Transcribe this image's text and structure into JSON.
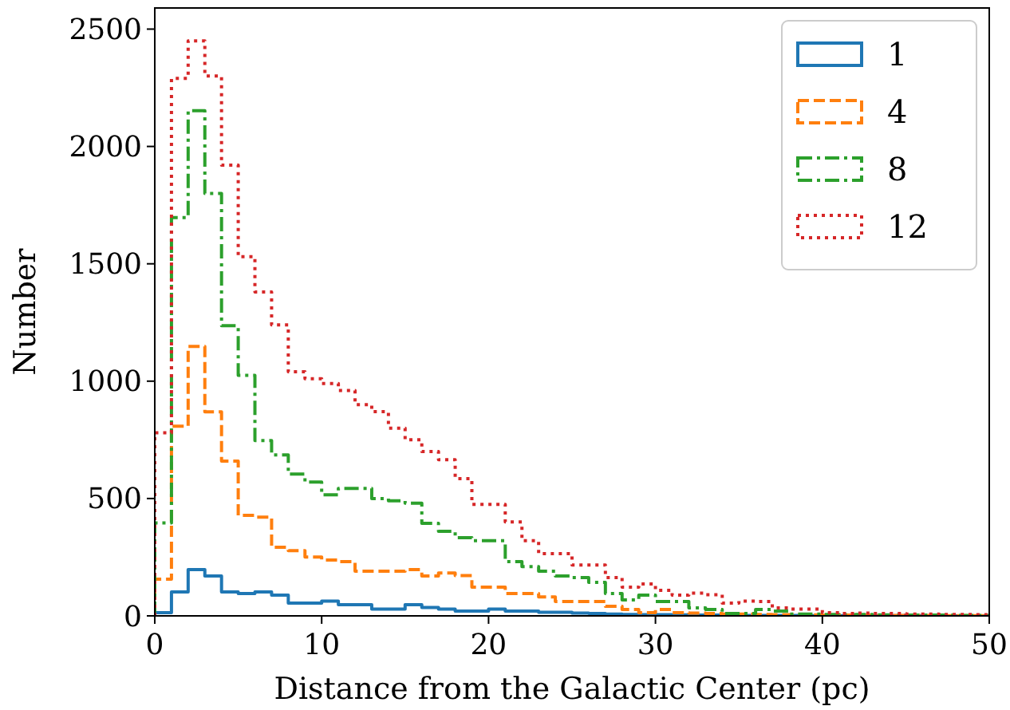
{
  "chart_data": {
    "type": "histogram",
    "xlabel": "Distance from the Galactic Center (pc)",
    "ylabel": "Number",
    "bins": [
      0,
      1,
      2,
      3,
      4,
      5,
      6,
      7,
      8,
      9,
      10,
      11,
      12,
      13,
      14,
      15,
      16,
      17,
      18,
      19,
      20,
      21,
      22,
      23,
      24,
      25,
      26,
      27,
      28,
      29,
      30,
      31,
      32,
      33,
      34,
      35,
      36,
      37,
      38,
      39,
      40,
      41,
      42,
      43,
      44,
      45,
      46,
      47,
      48,
      49,
      50
    ],
    "series": [
      {
        "name": "1",
        "color": "#1f77b4",
        "line_style": "solid",
        "values": [
          14,
          102,
          197,
          170,
          102,
          95,
          102,
          88,
          54,
          54,
          63,
          48,
          48,
          29,
          29,
          48,
          36,
          29,
          20,
          20,
          29,
          20,
          20,
          15,
          15,
          12,
          10,
          8,
          6,
          5,
          5,
          4,
          3,
          3,
          3,
          2,
          2,
          2,
          2,
          1,
          1,
          1,
          1,
          1,
          1,
          1,
          0,
          0,
          0,
          0
        ]
      },
      {
        "name": "4",
        "color": "#ff7f0e",
        "line_style": "dashed",
        "values": [
          156,
          808,
          1148,
          869,
          659,
          428,
          421,
          292,
          278,
          251,
          238,
          231,
          190,
          190,
          190,
          197,
          170,
          183,
          172,
          122,
          122,
          95,
          95,
          81,
          61,
          61,
          61,
          41,
          27,
          14,
          27,
          14,
          12,
          10,
          8,
          8,
          6,
          5,
          5,
          4,
          3,
          3,
          3,
          2,
          2,
          2,
          2,
          1,
          1,
          1
        ]
      },
      {
        "name": "8",
        "color": "#2ca02c",
        "line_style": "dashdot",
        "values": [
          396,
          1697,
          2152,
          1800,
          1236,
          1025,
          747,
          686,
          604,
          570,
          516,
          543,
          543,
          500,
          490,
          480,
          394,
          360,
          333,
          320,
          320,
          231,
          210,
          190,
          170,
          163,
          143,
          95,
          68,
          88,
          61,
          61,
          34,
          27,
          10,
          10,
          27,
          20,
          8,
          8,
          6,
          5,
          6,
          4,
          4,
          3,
          3,
          3,
          2,
          2
        ]
      },
      {
        "name": "12",
        "color": "#d62728",
        "line_style": "dotted",
        "values": [
          780,
          2290,
          2450,
          2300,
          1920,
          1530,
          1380,
          1240,
          1040,
          1010,
          990,
          960,
          900,
          870,
          800,
          750,
          700,
          665,
          585,
          475,
          475,
          400,
          320,
          265,
          265,
          217,
          217,
          163,
          122,
          136,
          109,
          88,
          97,
          90,
          54,
          63,
          61,
          34,
          29,
          29,
          14,
          10,
          12,
          10,
          10,
          8,
          8,
          6,
          6,
          5
        ]
      }
    ],
    "xlim": [
      0,
      50
    ],
    "ylim": [
      0,
      2590
    ],
    "xticks": [
      0,
      10,
      20,
      30,
      40,
      50
    ],
    "yticks": [
      0,
      500,
      1000,
      1500,
      2000,
      2500
    ],
    "grid": false,
    "legend": "top right"
  }
}
